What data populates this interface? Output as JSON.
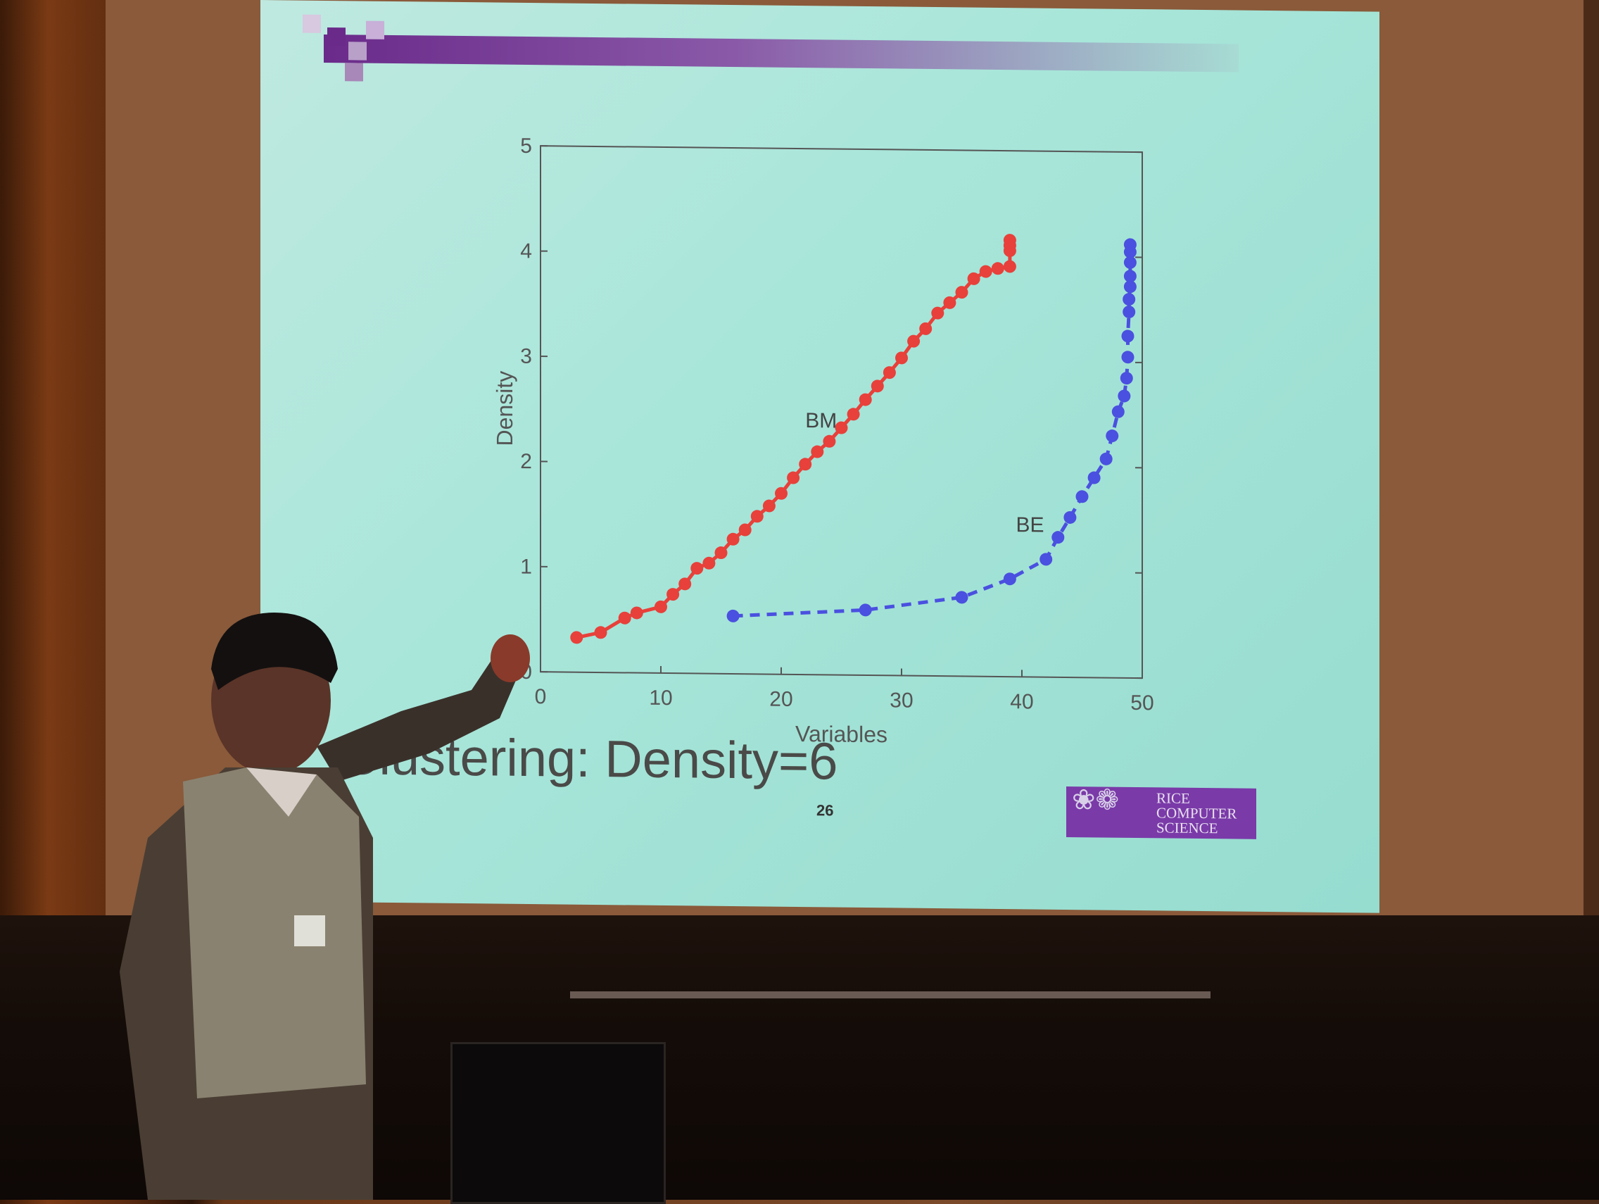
{
  "slide": {
    "title": "Clustering: Density=6",
    "page_number": "26",
    "logo_text": [
      "RICE",
      "COMPUTER",
      "SCIENCE"
    ],
    "header_bar_color": "#6a2a8a",
    "background_color": "#a9e6da"
  },
  "chart_data": {
    "type": "line",
    "xlabel": "Variables",
    "ylabel": "Density",
    "xlim": [
      0,
      50
    ],
    "ylim": [
      0,
      5
    ],
    "xticks": [
      "0",
      "10",
      "20",
      "30",
      "40",
      "50"
    ],
    "yticks": [
      "0",
      "1",
      "2",
      "3",
      "4",
      "5"
    ],
    "grid": false,
    "annotations": [
      "BM",
      "BE"
    ],
    "series": [
      {
        "name": "BM",
        "color": "#e8403a",
        "style": "solid-markers",
        "x": [
          3,
          5,
          7,
          8,
          10,
          11,
          12,
          13,
          14,
          15,
          16,
          17,
          18,
          19,
          20,
          21,
          22,
          23,
          24,
          25,
          26,
          27,
          28,
          29,
          30,
          31,
          32,
          33,
          34,
          35,
          36,
          37,
          38,
          39,
          39,
          39,
          39
        ],
        "y": [
          0.33,
          0.38,
          0.52,
          0.57,
          0.63,
          0.75,
          0.85,
          1.0,
          1.05,
          1.15,
          1.28,
          1.37,
          1.5,
          1.6,
          1.72,
          1.87,
          2.0,
          2.12,
          2.22,
          2.35,
          2.48,
          2.62,
          2.75,
          2.88,
          3.02,
          3.18,
          3.3,
          3.45,
          3.55,
          3.65,
          3.78,
          3.85,
          3.88,
          3.9,
          4.05,
          4.1,
          4.15
        ]
      },
      {
        "name": "BE",
        "color": "#4a50e0",
        "style": "dashed-markers",
        "x": [
          16,
          27,
          35,
          39,
          42,
          43,
          44,
          45,
          46,
          47,
          47.5,
          48,
          48.5,
          48.7,
          48.8,
          48.8,
          48.9,
          48.9,
          49,
          49,
          49,
          49,
          49
        ],
        "y": [
          0.55,
          0.62,
          0.75,
          0.93,
          1.12,
          1.33,
          1.52,
          1.72,
          1.9,
          2.08,
          2.3,
          2.53,
          2.68,
          2.85,
          3.05,
          3.25,
          3.48,
          3.6,
          3.72,
          3.82,
          3.95,
          4.05,
          4.12
        ]
      }
    ]
  }
}
